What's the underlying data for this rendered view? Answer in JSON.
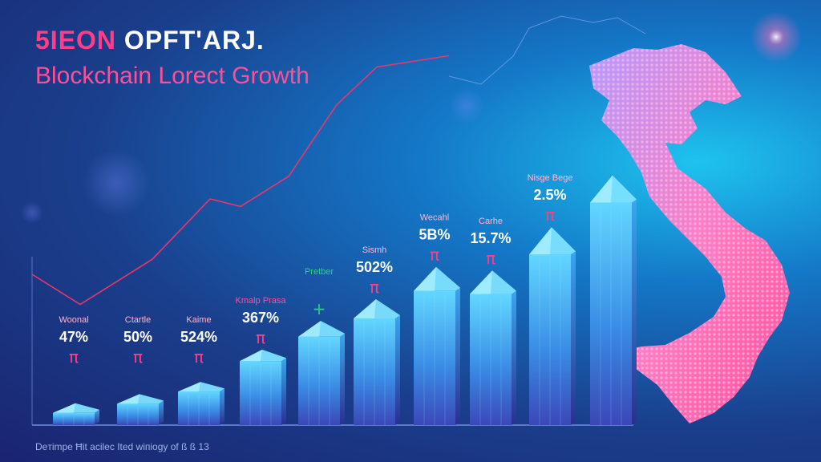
{
  "header": {
    "title_part1": "5ΙΕΟΝ",
    "title_part2": " OPFT'ARJ.",
    "subtitle": "Blockchain Lorect Growth",
    "footnote": "Deтimpe Ħit acilec Ited wiпiogy of ß ß 13"
  },
  "colors": {
    "accent": "#ff3d88",
    "bar_top": "#5fd6ff",
    "bar_bottom": "#2f4fc0",
    "line": "#e8366e",
    "map_pink": "#ff6fb8",
    "map_purple": "#a78bff",
    "green": "#31d07a"
  },
  "chart_data": {
    "type": "bar",
    "title": "Blockchain Lorect Growth",
    "categories": [
      "Woonal",
      "Ctartle",
      "Kaime",
      "Kmalp Prasa",
      "Pretber",
      "Sismh",
      "Wecahl",
      "Carhe",
      "Nisge Bege",
      ""
    ],
    "values": [
      4,
      7,
      11,
      21,
      29,
      35,
      44,
      43,
      56,
      73
    ],
    "value_labels": [
      "47%",
      "50%",
      "524%",
      "367%",
      "",
      "502%",
      "5B%",
      "15.7%",
      "2.5%",
      ""
    ],
    "ylim": [
      0,
      100
    ],
    "trend_line": [
      {
        "x": 0,
        "y": 40
      },
      {
        "x": 1,
        "y": 32
      },
      {
        "x": 2,
        "y": 44
      },
      {
        "x": 3,
        "y": 60
      },
      {
        "x": 4,
        "y": 58
      },
      {
        "x": 5,
        "y": 66
      },
      {
        "x": 6,
        "y": 85
      },
      {
        "x": 7,
        "y": 95
      },
      {
        "x": 8,
        "y": 98
      }
    ]
  },
  "bar_icons": [
    "pi",
    "pi",
    "pi",
    "pi",
    "plus",
    "pi",
    "pi",
    "pi",
    "pi",
    ""
  ]
}
